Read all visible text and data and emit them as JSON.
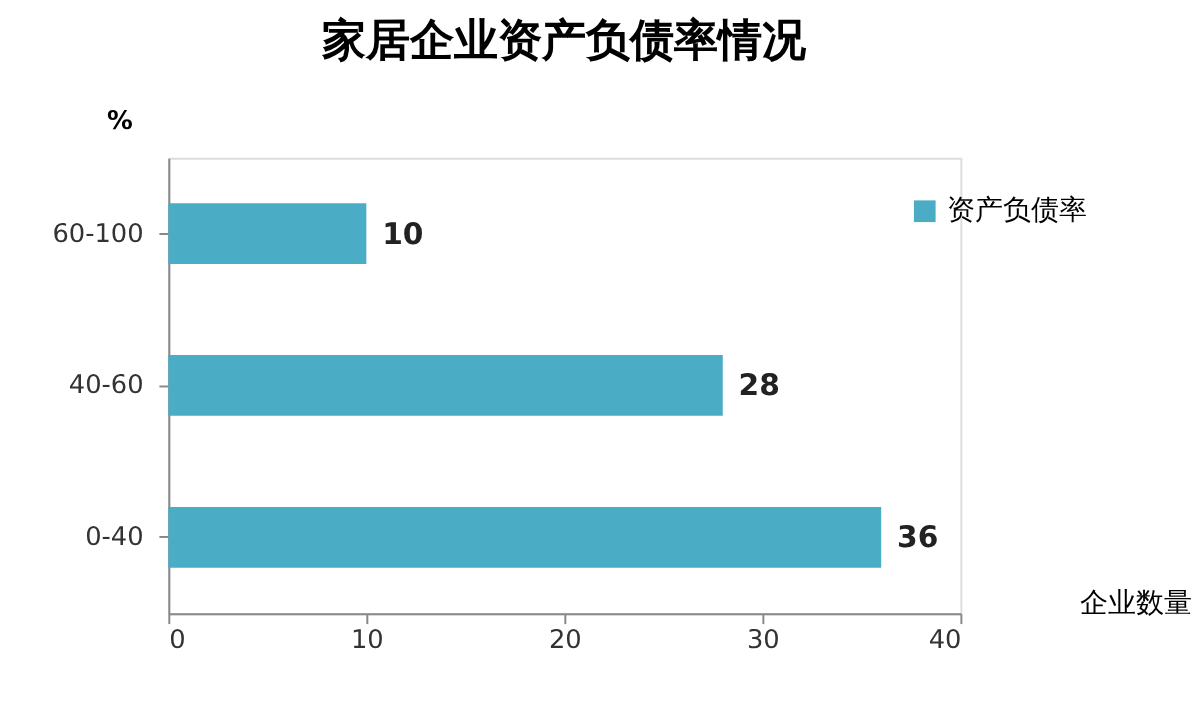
{
  "chart_data": {
    "type": "bar",
    "orientation": "horizontal",
    "title": "家居企业资产负债率情况",
    "ylabel": "%",
    "xlabel": "企业数量",
    "categories": [
      "60-100",
      "40-60",
      "0-40"
    ],
    "series": [
      {
        "name": "资产负债率",
        "color": "#4bacc6",
        "values": [
          10,
          28,
          36
        ]
      }
    ],
    "xlim": [
      0,
      40
    ],
    "xticks": [
      0,
      10,
      20,
      30,
      40
    ],
    "grid": false,
    "legend": "right",
    "data_labels": true
  }
}
